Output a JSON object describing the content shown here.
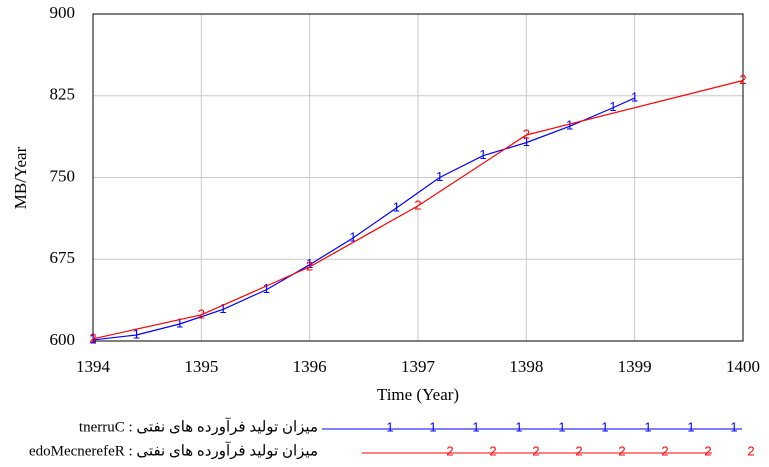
{
  "chart_data": {
    "type": "line",
    "xlabel": "Time (Year)",
    "ylabel": "MB/Year",
    "xlim": [
      1394,
      1400
    ],
    "xticks": [
      1394,
      1395,
      1396,
      1397,
      1398,
      1399,
      1400
    ],
    "ylim": [
      600,
      900
    ],
    "yticks": [
      600,
      675,
      750,
      825,
      900
    ],
    "grid": true,
    "series": [
      {
        "name": "tnerruC : میزان تولید فرآورده های نفتی",
        "color": "#0000ff",
        "marker": "1",
        "x": [
          1394,
          1394.4,
          1394.8,
          1395.2,
          1395.6,
          1396,
          1396.4,
          1396.8,
          1397.2,
          1397.6,
          1398,
          1398.4,
          1398.8,
          1399
        ],
        "values": [
          601,
          605.5,
          615.6,
          629,
          647,
          670,
          694.5,
          722,
          750,
          770,
          782,
          797,
          814,
          823
        ]
      },
      {
        "name": "edoMecnerefeR : میزان تولید فرآورده های نفتی",
        "color": "#ff0000",
        "marker": "2",
        "x": [
          1394,
          1395,
          1396,
          1397,
          1398,
          1400
        ],
        "values": [
          602,
          624,
          668,
          724,
          789,
          839
        ]
      }
    ]
  }
}
